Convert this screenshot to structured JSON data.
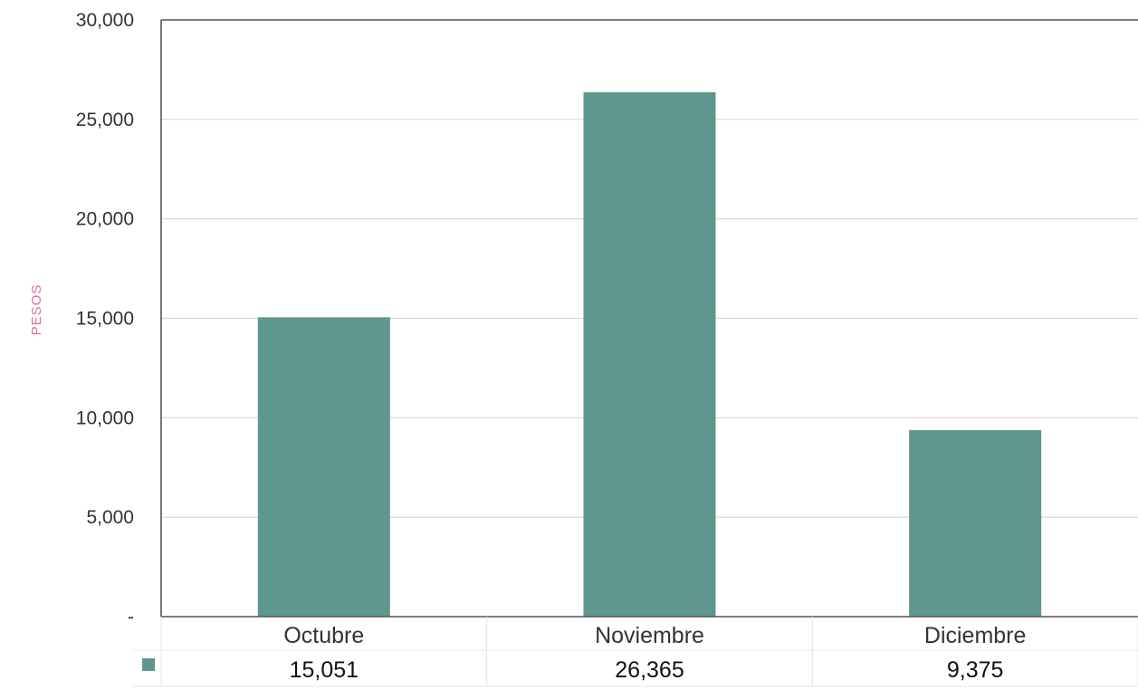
{
  "chart_data": {
    "type": "bar",
    "title": "",
    "xlabel": "",
    "ylabel": "PESOS",
    "categories": [
      "Octubre",
      "Noviembre",
      "Diciembre"
    ],
    "values": [
      15051,
      26365,
      9375
    ],
    "value_labels": [
      "15,051",
      "26,365",
      "9,375"
    ],
    "y_ticks": [
      0,
      5000,
      10000,
      15000,
      20000,
      25000,
      30000
    ],
    "y_tick_labels": [
      "-",
      "5,000",
      "10,000",
      "15,000",
      "20,000",
      "25,000",
      "30,000"
    ],
    "ylim": [
      0,
      30000
    ],
    "grid": true,
    "legend": "data-table-below",
    "bar_color": "#5f968e",
    "grid_color": "#d8d8d8",
    "axis_color": "#555555"
  }
}
